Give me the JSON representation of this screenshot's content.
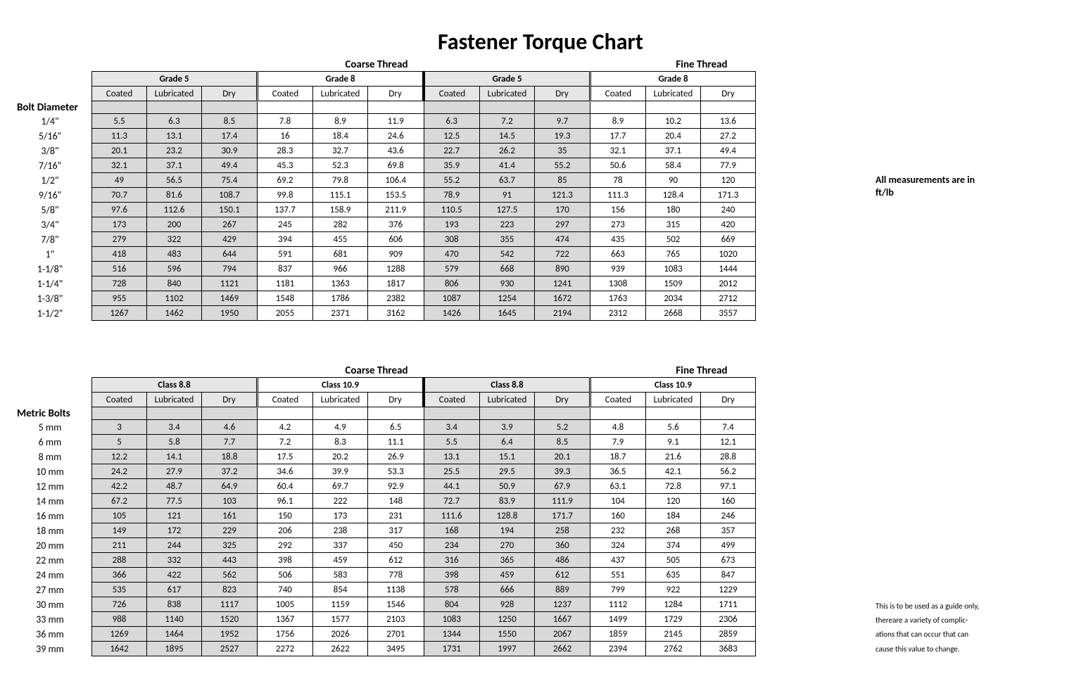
{
  "title": "Fastener Torque Chart",
  "threads": [
    "Coarse Thread",
    "Fine Thread"
  ],
  "subcols": [
    "Coated",
    "Lubricated",
    "Dry"
  ],
  "note1": "All measurements are in ft/lb",
  "note2": "This is to be used as a guide only, thereare a variety of complic- ations that can occur that can cause this value to change.",
  "colors": {
    "header_shade": "#e6e6e6",
    "cell_shade": "#d9d9d9",
    "border": "#000000",
    "background": "#ffffff"
  },
  "imperial": {
    "section_label": "Bolt Diameter",
    "grades": [
      "Grade 5",
      "Grade 8",
      "Grade 5",
      "Grade 8"
    ],
    "row_labels": [
      "1/4\"",
      "5/16\"",
      "3/8\"",
      "7/16\"",
      "1/2\"",
      "9/16\"",
      "5/8\"",
      "3/4\"",
      "7/8\"",
      "1\"",
      "1-1/8\"",
      "1-1/4\"",
      "1-3/8\"",
      "1-1/2\""
    ],
    "rows": [
      [
        5.5,
        6.3,
        8.5,
        7.8,
        8.9,
        11.9,
        6.3,
        7.2,
        9.7,
        8.9,
        10.2,
        13.6
      ],
      [
        11.3,
        13.1,
        17.4,
        16,
        18.4,
        24.6,
        12.5,
        14.5,
        19.3,
        17.7,
        20.4,
        27.2
      ],
      [
        20.1,
        23.2,
        30.9,
        28.3,
        32.7,
        43.6,
        22.7,
        26.2,
        35,
        32.1,
        37.1,
        49.4
      ],
      [
        32.1,
        37.1,
        49.4,
        45.3,
        52.3,
        69.8,
        35.9,
        41.4,
        55.2,
        50.6,
        58.4,
        77.9
      ],
      [
        49,
        56.5,
        75.4,
        69.2,
        79.8,
        106.4,
        55.2,
        63.7,
        85,
        78,
        90,
        120
      ],
      [
        70.7,
        81.6,
        108.7,
        99.8,
        115.1,
        153.5,
        78.9,
        91,
        121.3,
        111.3,
        128.4,
        171.3
      ],
      [
        97.6,
        112.6,
        150.1,
        137.7,
        158.9,
        211.9,
        110.5,
        127.5,
        170,
        156,
        180,
        240
      ],
      [
        173,
        200,
        267,
        245,
        282,
        376,
        193,
        223,
        297,
        273,
        315,
        420
      ],
      [
        279,
        322,
        429,
        394,
        455,
        606,
        308,
        355,
        474,
        435,
        502,
        669
      ],
      [
        418,
        483,
        644,
        591,
        681,
        909,
        470,
        542,
        722,
        663,
        765,
        1020
      ],
      [
        516,
        596,
        794,
        837,
        966,
        1288,
        579,
        668,
        890,
        939,
        1083,
        1444
      ],
      [
        728,
        840,
        1121,
        1181,
        1363,
        1817,
        806,
        930,
        1241,
        1308,
        1509,
        2012
      ],
      [
        955,
        1102,
        1469,
        1548,
        1786,
        2382,
        1087,
        1254,
        1672,
        1763,
        2034,
        2712
      ],
      [
        1267,
        1462,
        1950,
        2055,
        2371,
        3162,
        1426,
        1645,
        2194,
        2312,
        2668,
        3557
      ]
    ]
  },
  "metric": {
    "section_label": "Metric Bolts",
    "grades": [
      "Class 8.8",
      "Class 10.9",
      "Class 8.8",
      "Class 10.9"
    ],
    "row_labels": [
      "5 mm",
      "6 mm",
      "8 mm",
      "10 mm",
      "12 mm",
      "14 mm",
      "16 mm",
      "18 mm",
      "20 mm",
      "22 mm",
      "24 mm",
      "27 mm",
      "30 mm",
      "33 mm",
      "36 mm",
      "39 mm"
    ],
    "rows": [
      [
        3,
        3.4,
        4.6,
        4.2,
        4.9,
        6.5,
        3.4,
        3.9,
        5.2,
        4.8,
        5.6,
        7.4
      ],
      [
        5,
        5.8,
        7.7,
        7.2,
        8.3,
        11.1,
        5.5,
        6.4,
        8.5,
        7.9,
        9.1,
        12.1
      ],
      [
        12.2,
        14.1,
        18.8,
        17.5,
        20.2,
        26.9,
        13.1,
        15.1,
        20.1,
        18.7,
        21.6,
        28.8
      ],
      [
        24.2,
        27.9,
        37.2,
        34.6,
        39.9,
        53.3,
        25.5,
        29.5,
        39.3,
        36.5,
        42.1,
        56.2
      ],
      [
        42.2,
        48.7,
        64.9,
        60.4,
        69.7,
        92.9,
        44.1,
        50.9,
        67.9,
        63.1,
        72.8,
        97.1
      ],
      [
        67.2,
        77.5,
        103,
        96.1,
        222,
        148,
        72.7,
        83.9,
        111.9,
        104,
        120,
        160
      ],
      [
        105,
        121,
        161,
        150,
        173,
        231,
        111.6,
        128.8,
        171.7,
        160,
        184,
        246
      ],
      [
        149,
        172,
        229,
        206,
        238,
        317,
        168,
        194,
        258,
        232,
        268,
        357
      ],
      [
        211,
        244,
        325,
        292,
        337,
        450,
        234,
        270,
        360,
        324,
        374,
        499
      ],
      [
        288,
        332,
        443,
        398,
        459,
        612,
        316,
        365,
        486,
        437,
        505,
        673
      ],
      [
        366,
        422,
        562,
        506,
        583,
        778,
        398,
        459,
        612,
        551,
        635,
        847
      ],
      [
        535,
        617,
        823,
        740,
        854,
        1138,
        578,
        666,
        889,
        799,
        922,
        1229
      ],
      [
        726,
        838,
        1117,
        1005,
        1159,
        1546,
        804,
        928,
        1237,
        1112,
        1284,
        1711
      ],
      [
        988,
        1140,
        1520,
        1367,
        1577,
        2103,
        1083,
        1250,
        1667,
        1499,
        1729,
        2306
      ],
      [
        1269,
        1464,
        1952,
        1756,
        2026,
        2701,
        1344,
        1550,
        2067,
        1859,
        2145,
        2859
      ],
      [
        1642,
        1895,
        2527,
        2272,
        2622,
        3495,
        1731,
        1997,
        2662,
        2394,
        2762,
        3683
      ]
    ]
  }
}
